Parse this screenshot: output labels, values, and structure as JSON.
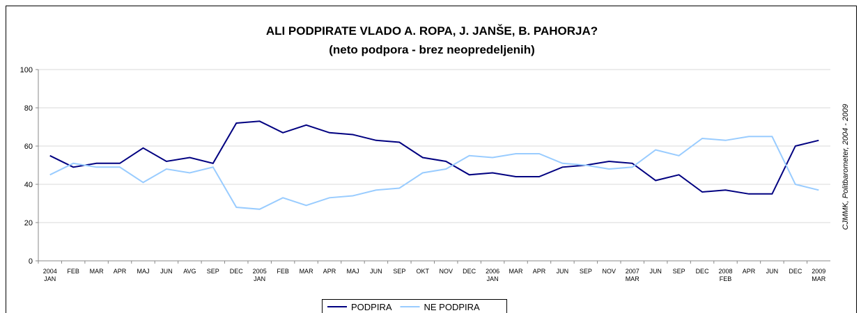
{
  "chart_data": {
    "type": "line",
    "title": "ALI PODPIRATE VLADO A. ROPA, J. JANŠE, B. PAHORJA?",
    "subtitle": "(neto podpora - brez neopredeljenih)",
    "annotation": "CJMMK, Politbarometer, 2004 - 2009",
    "categories": [
      "2004\nJAN",
      "FEB",
      "MAR",
      "APR",
      "MAJ",
      "JUN",
      "AVG",
      "SEP",
      "DEC",
      "2005\nJAN",
      "FEB",
      "MAR",
      "APR",
      "MAJ",
      "JUN",
      "SEP",
      "OKT",
      "NOV",
      "DEC",
      "2006\nJAN",
      "MAR",
      "APR",
      "JUN",
      "SEP",
      "NOV",
      "2007\nMAR",
      "JUN",
      "SEP",
      "DEC",
      "2008\nFEB",
      "APR",
      "JUN",
      "DEC",
      "2009\nMAR"
    ],
    "series": [
      {
        "name": "PODPIRA",
        "color": "#000080",
        "values": [
          55,
          49,
          51,
          51,
          59,
          52,
          54,
          51,
          72,
          73,
          67,
          71,
          67,
          66,
          63,
          62,
          54,
          52,
          45,
          46,
          44,
          44,
          49,
          50,
          52,
          51,
          42,
          45,
          36,
          37,
          35,
          35,
          60,
          63
        ]
      },
      {
        "name": "NE PODPIRA",
        "color": "#99ccff",
        "values": [
          45,
          51,
          49,
          49,
          41,
          48,
          46,
          49,
          28,
          27,
          33,
          29,
          33,
          34,
          37,
          38,
          46,
          48,
          55,
          54,
          56,
          56,
          51,
          50,
          48,
          49,
          58,
          55,
          64,
          63,
          65,
          65,
          40,
          37
        ]
      }
    ],
    "ylim": [
      0,
      100
    ],
    "yticks": [
      0,
      20,
      40,
      60,
      80,
      100
    ],
    "grid": true,
    "legend": "bottom"
  }
}
